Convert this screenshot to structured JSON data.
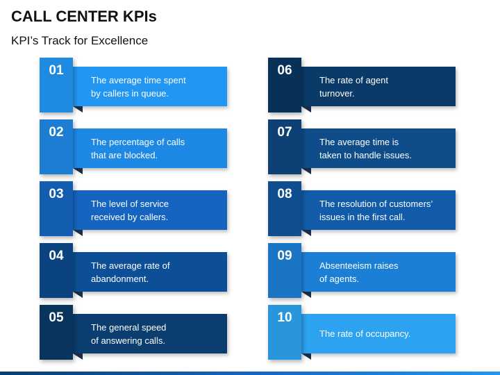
{
  "header": {
    "title": "CALL CENTER KPIs",
    "subtitle": "KPI’s Track for Excellence"
  },
  "kpis": [
    {
      "number": "01",
      "text": "The average time spent\nby callers in queue.",
      "color": "#2196f3"
    },
    {
      "number": "02",
      "text": "The percentage of calls\nthat are blocked.",
      "color": "#1e88e5"
    },
    {
      "number": "03",
      "text": "The level of service\nreceived by callers.",
      "color": "#1565c0"
    },
    {
      "number": "04",
      "text": "The average rate of\nabandonment.",
      "color": "#0d4f96"
    },
    {
      "number": "05",
      "text": "The general speed\nof answering calls.",
      "color": "#0b3d6e"
    },
    {
      "number": "06",
      "text": "The rate of agent\nturnover.",
      "color": "#0a3a67"
    },
    {
      "number": "07",
      "text": "The average time is\ntaken to handle issues.",
      "color": "#0f4c8a"
    },
    {
      "number": "08",
      "text": "The resolution of customers’\nissues in the first call.",
      "color": "#125ba8"
    },
    {
      "number": "09",
      "text": "Absenteeism raises\nof agents.",
      "color": "#1c7fd6"
    },
    {
      "number": "10",
      "text": "The rate of occupancy.",
      "color": "#2ca2f0"
    }
  ]
}
